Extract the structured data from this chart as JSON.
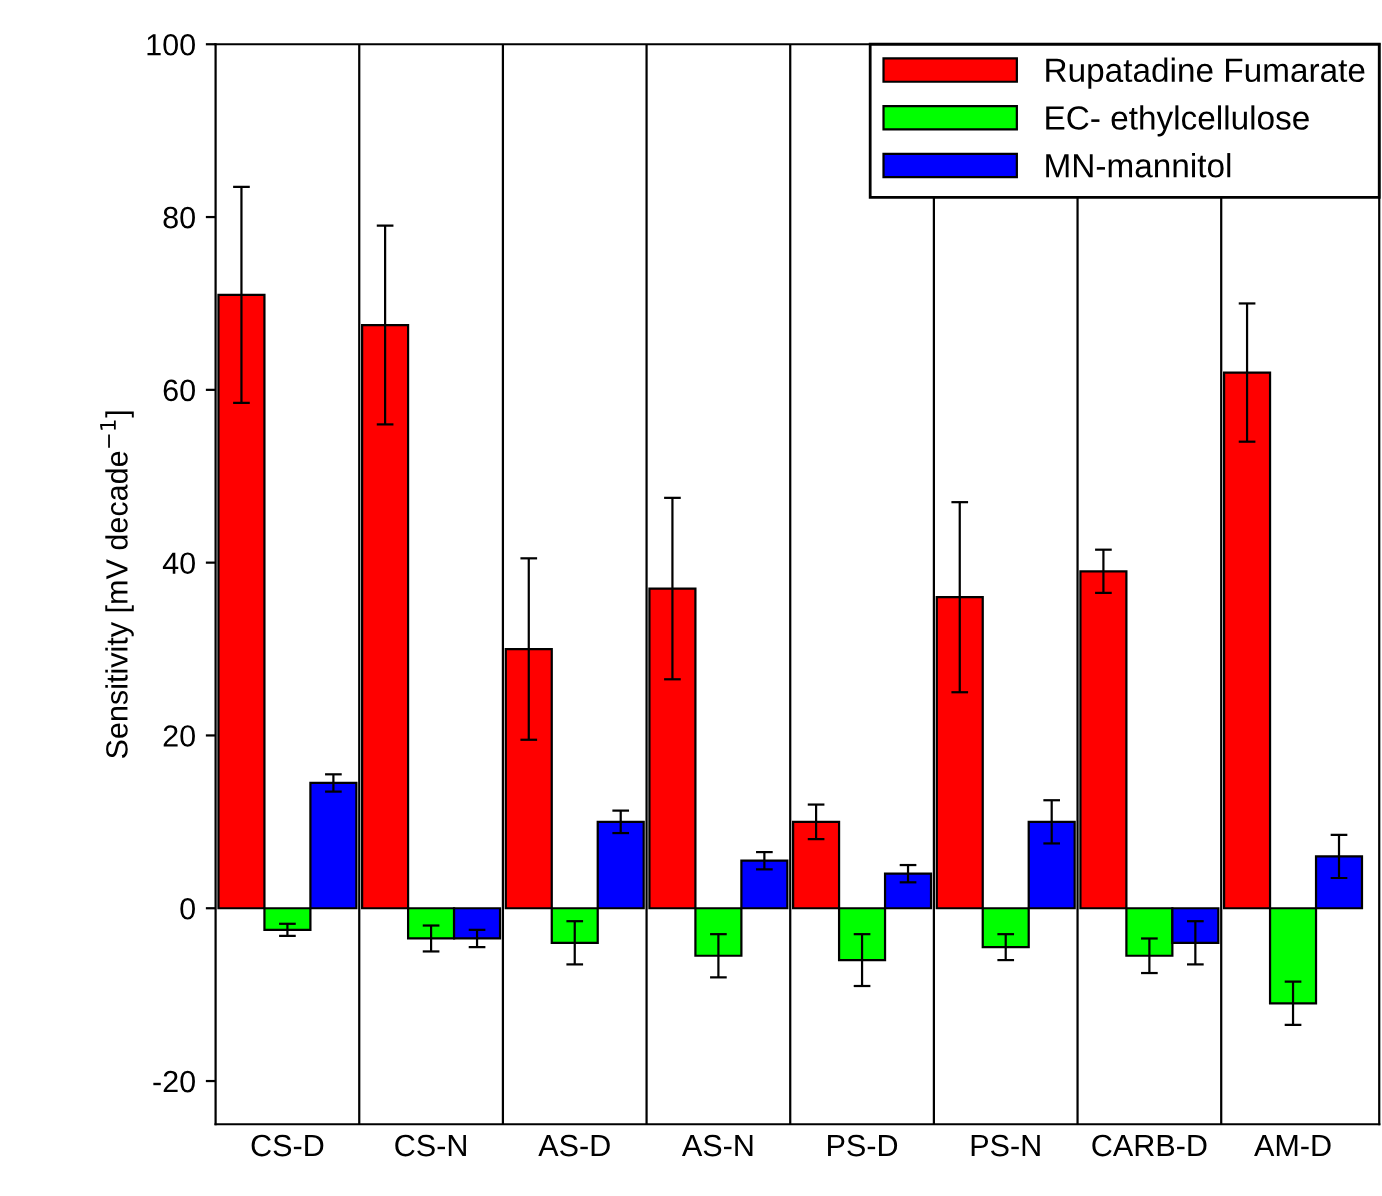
{
  "chart_data": {
    "type": "bar",
    "ylabel": "Sensitivity [mV decade$^{−1}$]",
    "categories": [
      "CS-D",
      "CS-N",
      "AS-D",
      "AS-N",
      "PS-D",
      "PS-N",
      "CARB-D",
      "AM-D"
    ],
    "series": [
      {
        "name": "Rupatadine Fumarate",
        "color": "#ff0000",
        "values": [
          71,
          67.5,
          30,
          37,
          10,
          36,
          39,
          62
        ],
        "errors": [
          12.5,
          11.5,
          10.5,
          10.5,
          2,
          11,
          2.5,
          8
        ]
      },
      {
        "name": "EC- ethylcellulose",
        "color": "#00ff00",
        "values": [
          -2.5,
          -3.5,
          -4,
          -5.5,
          -6,
          -4.5,
          -5.5,
          -11
        ],
        "errors": [
          0.7,
          1.5,
          2.5,
          2.5,
          3,
          1.5,
          2,
          2.5
        ]
      },
      {
        "name": "MN-mannitol",
        "color": "#0000ff",
        "values": [
          14.5,
          -3.5,
          10,
          5.5,
          4,
          10,
          -4,
          6
        ],
        "errors": [
          1,
          1,
          1.3,
          1,
          1,
          2.5,
          2.5,
          2.5
        ]
      }
    ],
    "ylim": [
      -25,
      100
    ],
    "yticks": [
      -20,
      0,
      20,
      40,
      60,
      80,
      100
    ],
    "grid": "x",
    "legend": "top right"
  }
}
